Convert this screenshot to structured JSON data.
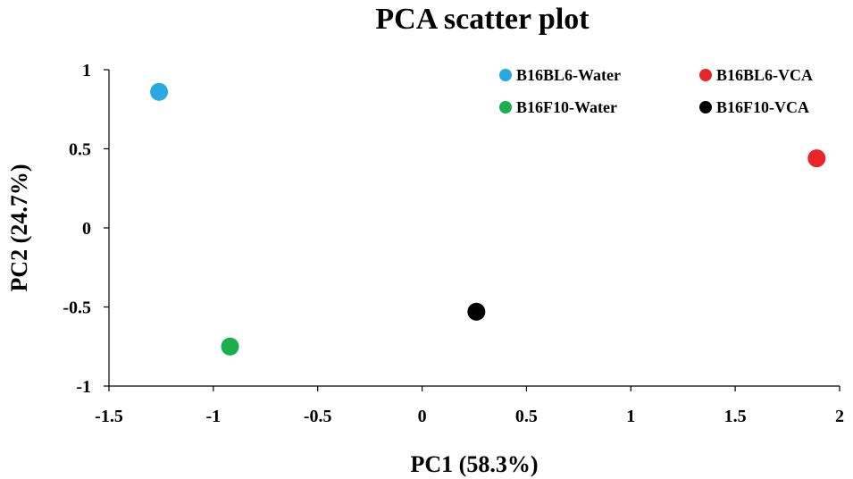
{
  "chart_data": {
    "type": "scatter",
    "title": "PCA scatter plot",
    "xlabel": "PC1 (58.3%)",
    "ylabel": "PC2 (24.7%)",
    "xlim": [
      -1.5,
      2
    ],
    "ylim": [
      -1,
      1
    ],
    "xticks": [
      "-1.5",
      "-1",
      "-0.5",
      "0",
      "0.5",
      "1",
      "1.5",
      "2"
    ],
    "yticks": [
      "1",
      "0.5",
      "0",
      "-0.5",
      "-1"
    ],
    "xtick_values": [
      -1.5,
      -1,
      -0.5,
      0,
      0.5,
      1,
      1.5,
      2
    ],
    "ytick_values": [
      1,
      0.5,
      0,
      -0.5,
      -1
    ],
    "grid": false,
    "legend_position": "top-right",
    "series": [
      {
        "name": "B16BL6-Water",
        "color": "#29a9e1",
        "points": [
          {
            "x": -1.26,
            "y": 0.86
          }
        ]
      },
      {
        "name": "B16BL6-VCA",
        "color": "#e8252a",
        "points": [
          {
            "x": 1.89,
            "y": 0.44
          }
        ]
      },
      {
        "name": "B16F10-Water",
        "color": "#1aaf4b",
        "points": [
          {
            "x": -0.92,
            "y": -0.75
          }
        ]
      },
      {
        "name": "B16F10-VCA",
        "color": "#000000",
        "points": [
          {
            "x": 0.26,
            "y": -0.53
          }
        ]
      }
    ]
  }
}
